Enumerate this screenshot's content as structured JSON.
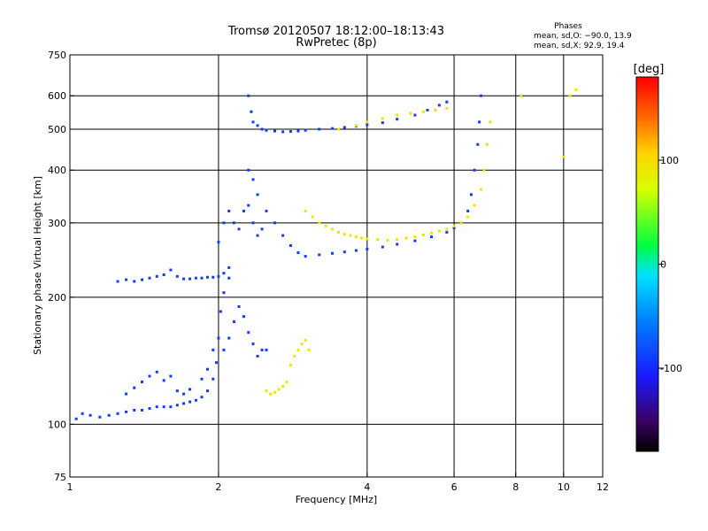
{
  "chart_data": {
    "type": "scatter",
    "title": "Tromsø 20120507 18:12:00–18:13:43",
    "subtitle": "RwPretec (8p)",
    "xlabel": "Frequency [MHz]",
    "ylabel": "Stationary phase Virtual Height [km]",
    "x_scale": "log",
    "y_scale": "log",
    "xlim": [
      1,
      12
    ],
    "ylim": [
      75,
      750
    ],
    "x_ticks": [
      1,
      2,
      4,
      6,
      8,
      10,
      12
    ],
    "y_ticks": [
      75,
      100,
      200,
      300,
      400,
      500,
      600,
      750
    ],
    "grid": true,
    "phases_box": {
      "title": "Phases",
      "line1": "mean, sd,O: −90.0, 13.9",
      "line2": "mean, sd,X:  92.9, 19.4"
    },
    "colorbar": {
      "label": "[deg]",
      "ticks": [
        100,
        0,
        -100
      ],
      "range": [
        -180,
        180
      ]
    },
    "series": [
      {
        "mode": "O",
        "phase_mean": -90.0,
        "phase_sd": 13.9,
        "points": [
          [
            1.03,
            103
          ],
          [
            1.06,
            106
          ],
          [
            1.1,
            105
          ],
          [
            1.15,
            104
          ],
          [
            1.2,
            105
          ],
          [
            1.25,
            106
          ],
          [
            1.3,
            107
          ],
          [
            1.35,
            108
          ],
          [
            1.4,
            108
          ],
          [
            1.45,
            109
          ],
          [
            1.5,
            110
          ],
          [
            1.55,
            110
          ],
          [
            1.6,
            110
          ],
          [
            1.65,
            111
          ],
          [
            1.7,
            112
          ],
          [
            1.75,
            113
          ],
          [
            1.8,
            114
          ],
          [
            1.85,
            116
          ],
          [
            1.9,
            120
          ],
          [
            1.95,
            128
          ],
          [
            1.98,
            140
          ],
          [
            2.0,
            160
          ],
          [
            2.02,
            185
          ],
          [
            2.05,
            205
          ],
          [
            2.1,
            222
          ],
          [
            1.3,
            118
          ],
          [
            1.35,
            122
          ],
          [
            1.4,
            126
          ],
          [
            1.45,
            130
          ],
          [
            1.5,
            133
          ],
          [
            1.55,
            127
          ],
          [
            1.6,
            130
          ],
          [
            1.65,
            120
          ],
          [
            1.7,
            118
          ],
          [
            1.75,
            121
          ],
          [
            1.85,
            128
          ],
          [
            1.9,
            135
          ],
          [
            1.95,
            150
          ],
          [
            1.25,
            218
          ],
          [
            1.3,
            220
          ],
          [
            1.35,
            218
          ],
          [
            1.4,
            220
          ],
          [
            1.45,
            222
          ],
          [
            1.5,
            224
          ],
          [
            1.55,
            226
          ],
          [
            1.6,
            232
          ],
          [
            1.65,
            224
          ],
          [
            1.7,
            221
          ],
          [
            1.75,
            221
          ],
          [
            1.8,
            222
          ],
          [
            1.85,
            222
          ],
          [
            1.9,
            223
          ],
          [
            1.95,
            223
          ],
          [
            2.0,
            224
          ],
          [
            2.05,
            228
          ],
          [
            2.1,
            235
          ],
          [
            2.0,
            270
          ],
          [
            2.05,
            300
          ],
          [
            2.1,
            320
          ],
          [
            2.15,
            300
          ],
          [
            2.2,
            290
          ],
          [
            2.25,
            320
          ],
          [
            2.3,
            330
          ],
          [
            2.35,
            300
          ],
          [
            2.4,
            280
          ],
          [
            2.45,
            290
          ],
          [
            2.05,
            150
          ],
          [
            2.1,
            160
          ],
          [
            2.15,
            175
          ],
          [
            2.2,
            190
          ],
          [
            2.25,
            180
          ],
          [
            2.3,
            165
          ],
          [
            2.35,
            155
          ],
          [
            2.4,
            145
          ],
          [
            2.45,
            150
          ],
          [
            2.5,
            150
          ],
          [
            2.3,
            600
          ],
          [
            2.33,
            550
          ],
          [
            2.35,
            520
          ],
          [
            2.4,
            510
          ],
          [
            2.45,
            500
          ],
          [
            2.5,
            497
          ],
          [
            2.6,
            495
          ],
          [
            2.7,
            493
          ],
          [
            2.8,
            494
          ],
          [
            2.9,
            495
          ],
          [
            3.0,
            497
          ],
          [
            3.2,
            500
          ],
          [
            3.4,
            502
          ],
          [
            3.6,
            505
          ],
          [
            3.8,
            508
          ],
          [
            4.0,
            512
          ],
          [
            4.3,
            518
          ],
          [
            4.6,
            528
          ],
          [
            5.0,
            540
          ],
          [
            5.3,
            555
          ],
          [
            5.6,
            570
          ],
          [
            5.8,
            580
          ],
          [
            2.3,
            400
          ],
          [
            2.35,
            380
          ],
          [
            2.4,
            350
          ],
          [
            2.5,
            320
          ],
          [
            2.6,
            300
          ],
          [
            2.7,
            280
          ],
          [
            2.8,
            265
          ],
          [
            2.9,
            255
          ],
          [
            3.0,
            250
          ],
          [
            3.2,
            252
          ],
          [
            3.4,
            254
          ],
          [
            3.6,
            256
          ],
          [
            3.8,
            258
          ],
          [
            4.0,
            260
          ],
          [
            4.3,
            263
          ],
          [
            4.6,
            267
          ],
          [
            5.0,
            272
          ],
          [
            5.4,
            278
          ],
          [
            5.8,
            285
          ],
          [
            6.0,
            292
          ],
          [
            6.2,
            300
          ],
          [
            6.4,
            320
          ],
          [
            6.5,
            350
          ],
          [
            6.6,
            400
          ],
          [
            6.7,
            460
          ],
          [
            6.75,
            520
          ],
          [
            6.8,
            600
          ]
        ]
      },
      {
        "mode": "X",
        "phase_mean": 92.9,
        "phase_sd": 19.4,
        "points": [
          [
            2.5,
            120
          ],
          [
            2.55,
            118
          ],
          [
            2.6,
            119
          ],
          [
            2.65,
            121
          ],
          [
            2.7,
            123
          ],
          [
            2.75,
            126
          ],
          [
            2.8,
            138
          ],
          [
            2.85,
            145
          ],
          [
            2.9,
            150
          ],
          [
            2.95,
            155
          ],
          [
            3.0,
            158
          ],
          [
            3.05,
            150
          ],
          [
            3.0,
            320
          ],
          [
            3.1,
            310
          ],
          [
            3.2,
            300
          ],
          [
            3.3,
            295
          ],
          [
            3.4,
            290
          ],
          [
            3.5,
            285
          ],
          [
            3.6,
            282
          ],
          [
            3.7,
            280
          ],
          [
            3.8,
            278
          ],
          [
            3.9,
            276
          ],
          [
            4.0,
            275
          ],
          [
            4.2,
            274
          ],
          [
            4.4,
            273
          ],
          [
            4.6,
            274
          ],
          [
            4.8,
            276
          ],
          [
            5.0,
            278
          ],
          [
            5.2,
            281
          ],
          [
            5.4,
            284
          ],
          [
            5.6,
            287
          ],
          [
            5.8,
            290
          ],
          [
            6.0,
            295
          ],
          [
            6.2,
            300
          ],
          [
            6.4,
            310
          ],
          [
            6.6,
            330
          ],
          [
            6.8,
            360
          ],
          [
            6.9,
            400
          ],
          [
            7.0,
            460
          ],
          [
            7.1,
            520
          ],
          [
            3.5,
            500
          ],
          [
            3.8,
            510
          ],
          [
            4.0,
            520
          ],
          [
            4.3,
            530
          ],
          [
            4.6,
            540
          ],
          [
            4.9,
            545
          ],
          [
            5.2,
            550
          ],
          [
            5.5,
            555
          ],
          [
            5.8,
            560
          ],
          [
            8.2,
            600
          ],
          [
            10.3,
            600
          ],
          [
            10.6,
            620
          ],
          [
            10.0,
            430
          ]
        ]
      }
    ]
  }
}
